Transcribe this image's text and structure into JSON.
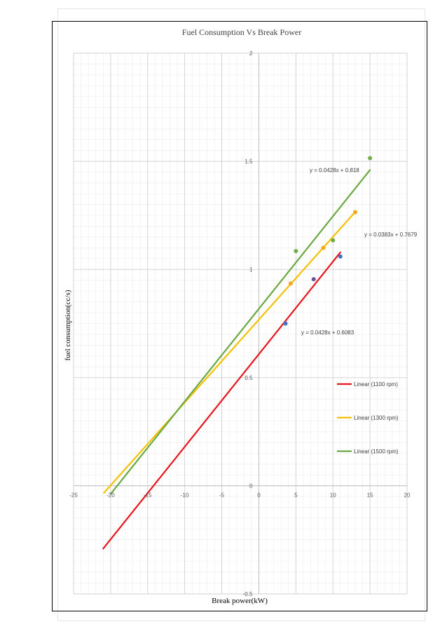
{
  "chart_data": {
    "type": "scatter",
    "title": "Fuel Consumption Vs Break Power",
    "xlabel": "Break power(kW)",
    "ylabel": "fuel consumption(cc/s)",
    "xlim": [
      -25,
      20
    ],
    "ylim": [
      -0.5,
      2
    ],
    "x_ticks": [
      -25,
      -20,
      -15,
      -10,
      -5,
      0,
      5,
      10,
      15,
      20
    ],
    "y_ticks": [
      -0.5,
      0,
      0.5,
      1,
      1.5,
      2
    ],
    "x_tick_labels": [
      "-25",
      "-20",
      "-15",
      "-10",
      "-5",
      "0",
      "5",
      "10",
      "15",
      "20"
    ],
    "y_tick_labels": [
      "-0.5",
      "0",
      "0.5",
      "1",
      "1.5",
      "2"
    ],
    "x_minor_step": 1,
    "y_minor_step": 0.05,
    "grid": true,
    "legend_position": "right",
    "series": [
      {
        "name": "1100 rpm",
        "points": [
          {
            "x": 3.6,
            "y": 0.75
          },
          {
            "x": 7.4,
            "y": 0.955
          },
          {
            "x": 11.0,
            "y": 1.06
          }
        ],
        "point_colors": [
          "#4472c4",
          "#6a4f9a",
          "#4472c4"
        ],
        "trendline": {
          "name": "Linear (1100 rpm)",
          "slope": 0.0428,
          "intercept": 0.6083,
          "x_from": -21,
          "x_to": 11,
          "color": "#e8141b"
        },
        "equation": "y = 0.0428x + 0.6083"
      },
      {
        "name": "1300 rpm",
        "points": [
          {
            "x": 4.3,
            "y": 0.935
          },
          {
            "x": 8.7,
            "y": 1.1
          },
          {
            "x": 13.0,
            "y": 1.265
          }
        ],
        "point_colors": [
          "#f2a81d",
          "#f2a81d",
          "#f2a81d"
        ],
        "trendline": {
          "name": "Linear (1300 rpm)",
          "slope": 0.0383,
          "intercept": 0.7679,
          "x_from": -20.9,
          "x_to": 13,
          "color": "#f5c000"
        },
        "equation": "y = 0.0383x + 0.7679"
      },
      {
        "name": "1500 rpm",
        "points": [
          {
            "x": 5.0,
            "y": 1.085
          },
          {
            "x": 10.0,
            "y": 1.135
          },
          {
            "x": 15.0,
            "y": 1.515
          }
        ],
        "point_colors": [
          "#70ad47",
          "#70ad47",
          "#70ad47"
        ],
        "trendline": {
          "name": "Linear (1500 rpm)",
          "slope": 0.0428,
          "intercept": 0.818,
          "x_from": -20,
          "x_to": 15,
          "color": "#6aa842"
        },
        "equation": "y = 0.0428x + 0.818"
      }
    ]
  }
}
